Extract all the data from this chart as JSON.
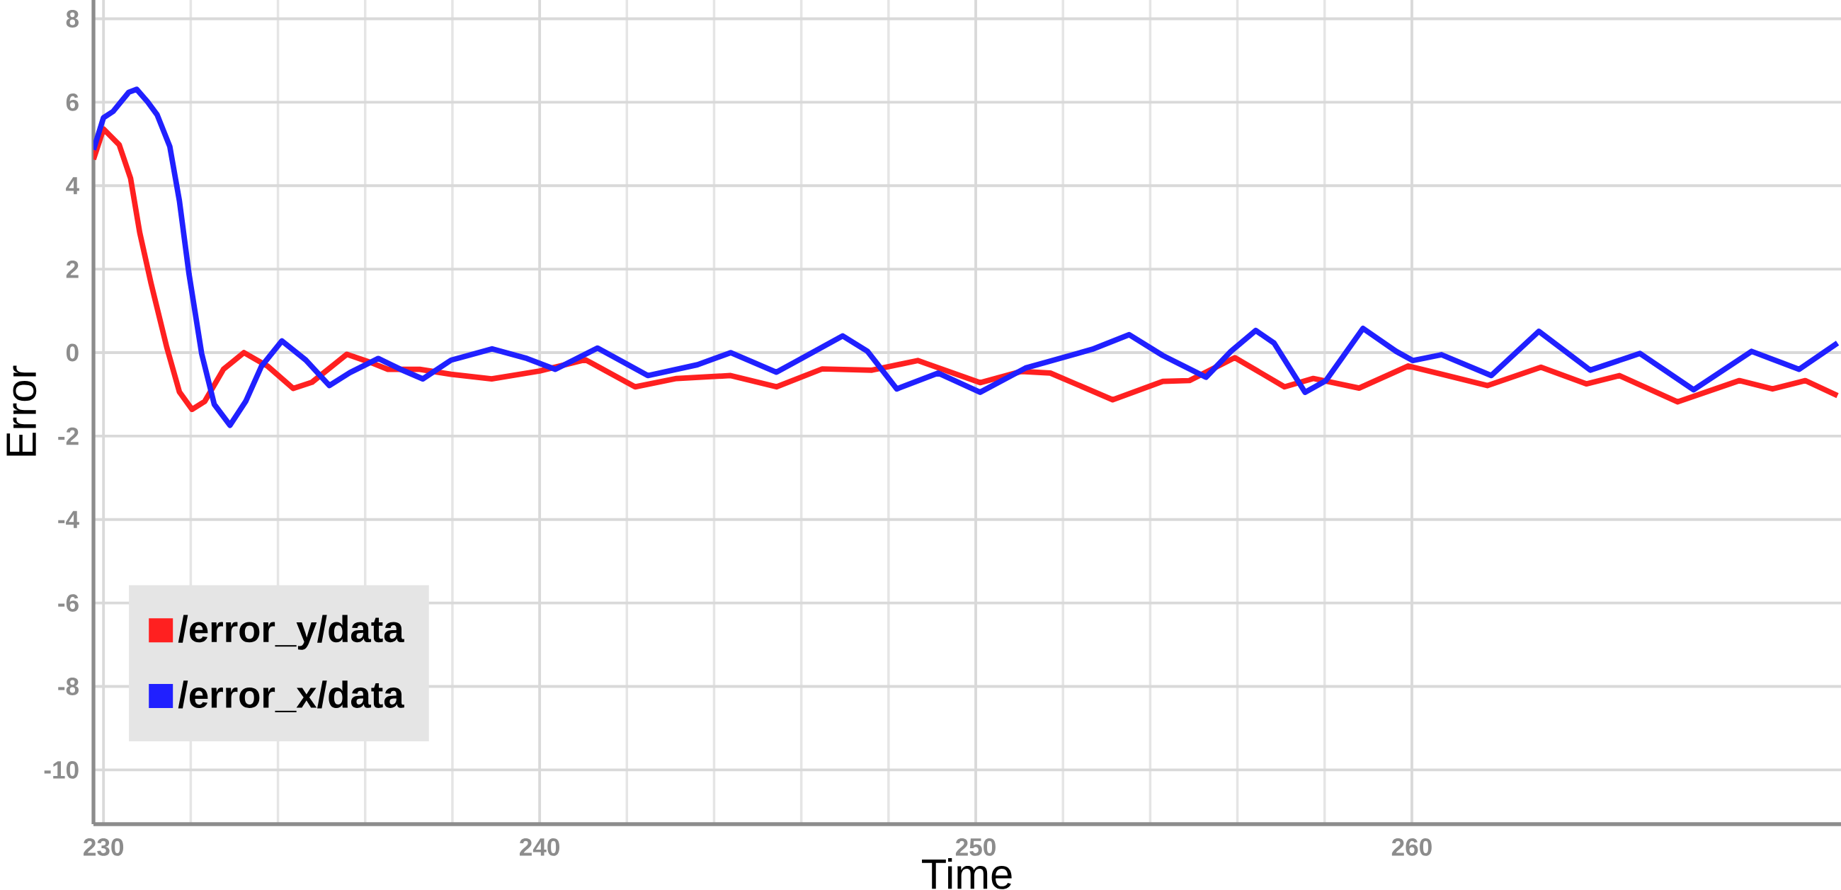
{
  "chart_data": {
    "type": "line",
    "xlabel": "Time",
    "ylabel": "Error",
    "xlim": [
      229.77,
      269.84
    ],
    "ylim": [
      -11.3,
      8.45
    ],
    "xticks": [
      230,
      240,
      250,
      260
    ],
    "yticks": [
      -10,
      -8,
      -6,
      -4,
      -2,
      0,
      2,
      4,
      6,
      8
    ],
    "grid": true,
    "legend": "bottom left",
    "series": [
      {
        "name": "/error_y/data",
        "color": "#ff2020",
        "x": [
          229.77,
          230.0,
          230.36,
          230.62,
          230.83,
          231.09,
          231.45,
          231.74,
          232.03,
          232.32,
          232.75,
          233.22,
          233.77,
          234.35,
          234.78,
          235.58,
          236.16,
          236.52,
          237.25,
          237.97,
          238.9,
          240.0,
          241.05,
          242.19,
          243.14,
          244.38,
          245.43,
          246.48,
          247.62,
          248.67,
          250.1,
          251.05,
          251.71,
          253.14,
          254.29,
          254.9,
          255.94,
          257.08,
          257.74,
          258.79,
          259.92,
          261.73,
          262.96,
          264.0,
          264.76,
          266.09,
          267.51,
          268.27,
          269.02,
          269.76
        ],
        "values": [
          4.63,
          5.36,
          4.98,
          4.18,
          2.88,
          1.66,
          0.13,
          -0.94,
          -1.36,
          -1.17,
          -0.4,
          0.0,
          -0.33,
          -0.86,
          -0.71,
          -0.04,
          -0.25,
          -0.4,
          -0.4,
          -0.52,
          -0.63,
          -0.44,
          -0.17,
          -0.82,
          -0.62,
          -0.55,
          -0.82,
          -0.39,
          -0.42,
          -0.19,
          -0.72,
          -0.45,
          -0.49,
          -1.13,
          -0.69,
          -0.67,
          -0.12,
          -0.82,
          -0.62,
          -0.85,
          -0.32,
          -0.79,
          -0.35,
          -0.75,
          -0.55,
          -1.18,
          -0.67,
          -0.87,
          -0.67,
          -1.03
        ]
      },
      {
        "name": "/error_x/data",
        "color": "#2020ff",
        "x": [
          229.77,
          230.0,
          230.22,
          230.58,
          230.76,
          231.01,
          231.23,
          231.52,
          231.74,
          231.96,
          232.25,
          232.54,
          232.9,
          233.26,
          233.62,
          234.09,
          234.64,
          235.18,
          235.65,
          236.3,
          236.81,
          237.32,
          237.97,
          238.91,
          239.71,
          240.36,
          241.33,
          242.48,
          243.62,
          244.38,
          245.43,
          246.95,
          247.52,
          248.19,
          249.14,
          250.1,
          251.14,
          252.67,
          253.52,
          254.29,
          255.28,
          255.85,
          256.42,
          256.84,
          257.55,
          258.03,
          258.88,
          259.64,
          260.02,
          260.68,
          261.82,
          262.91,
          264.09,
          265.23,
          266.46,
          267.79,
          268.88,
          269.76
        ],
        "values": [
          4.86,
          5.63,
          5.78,
          6.24,
          6.31,
          6.01,
          5.7,
          4.94,
          3.64,
          1.89,
          -0.02,
          -1.24,
          -1.74,
          -1.17,
          -0.33,
          0.28,
          -0.18,
          -0.79,
          -0.48,
          -0.14,
          -0.4,
          -0.63,
          -0.18,
          0.09,
          -0.14,
          -0.4,
          0.11,
          -0.55,
          -0.29,
          0.0,
          -0.47,
          0.4,
          0.03,
          -0.87,
          -0.49,
          -0.95,
          -0.37,
          0.08,
          0.43,
          -0.07,
          -0.59,
          0.03,
          0.53,
          0.23,
          -0.95,
          -0.67,
          0.58,
          0.03,
          -0.19,
          -0.05,
          -0.55,
          0.51,
          -0.42,
          -0.02,
          -0.89,
          0.03,
          -0.4,
          0.23
        ]
      }
    ]
  }
}
